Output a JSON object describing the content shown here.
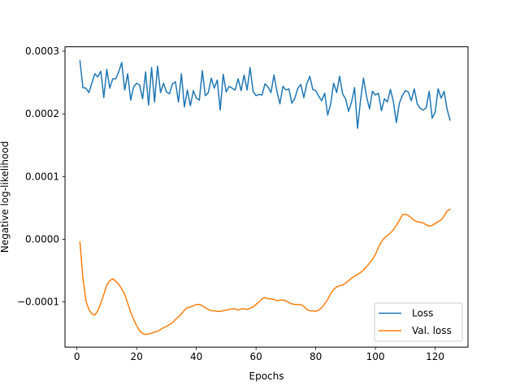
{
  "chart_data": {
    "type": "line",
    "xlabel": "Epochs",
    "ylabel": "Negative log-likelihood",
    "xlim": [
      -4,
      131
    ],
    "ylim": [
      -0.000172,
      0.000307
    ],
    "xticks": [
      0,
      20,
      40,
      60,
      80,
      100,
      120
    ],
    "xtick_labels": [
      "0",
      "20",
      "40",
      "60",
      "80",
      "100",
      "120"
    ],
    "yticks": [
      -0.0001,
      0.0,
      0.0001,
      0.0002,
      0.0003
    ],
    "ytick_labels": [
      "−0.0001",
      "0.0000",
      "0.0001",
      "0.0002",
      "0.0003"
    ],
    "grid": false,
    "legend_position": "lower-right",
    "series": [
      {
        "name": "Loss",
        "color": "#1f77b4",
        "x": [
          1,
          2,
          3,
          4,
          5,
          6,
          7,
          8,
          9,
          10,
          11,
          12,
          13,
          14,
          15,
          16,
          17,
          18,
          19,
          20,
          21,
          22,
          23,
          24,
          25,
          26,
          27,
          28,
          29,
          30,
          31,
          32,
          33,
          34,
          35,
          36,
          37,
          38,
          39,
          40,
          41,
          42,
          43,
          44,
          45,
          46,
          47,
          48,
          49,
          50,
          51,
          52,
          53,
          54,
          55,
          56,
          57,
          58,
          59,
          60,
          61,
          62,
          63,
          64,
          65,
          66,
          67,
          68,
          69,
          70,
          71,
          72,
          73,
          74,
          75,
          76,
          77,
          78,
          79,
          80,
          81,
          82,
          83,
          84,
          85,
          86,
          87,
          88,
          89,
          90,
          91,
          92,
          93,
          94,
          95,
          96,
          97,
          98,
          99,
          100,
          101,
          102,
          103,
          104,
          105,
          106,
          107,
          108,
          109,
          110,
          111,
          112,
          113,
          114,
          115,
          116,
          117,
          118,
          119,
          120,
          121,
          122,
          123,
          124,
          125
        ],
        "y": [
          0.000285,
          0.000242,
          0.000241,
          0.000234,
          0.000249,
          0.000264,
          0.000259,
          0.000268,
          0.000226,
          0.000271,
          0.000241,
          0.000256,
          0.000256,
          0.000267,
          0.000282,
          0.000238,
          0.000264,
          0.000222,
          0.000243,
          0.000249,
          0.000246,
          0.000224,
          0.000267,
          0.000214,
          0.000274,
          0.000219,
          0.000276,
          0.000234,
          0.000249,
          0.000235,
          0.000232,
          0.000248,
          0.000251,
          0.000219,
          0.000264,
          0.000211,
          0.000238,
          0.000213,
          0.000237,
          0.000225,
          0.000222,
          0.000269,
          0.000229,
          0.000234,
          0.000257,
          0.000241,
          0.000254,
          0.000206,
          0.000263,
          0.000235,
          0.000244,
          0.000241,
          0.000238,
          0.000256,
          0.000237,
          0.000262,
          0.000238,
          0.000274,
          0.000236,
          0.000229,
          0.000231,
          0.00023,
          0.000248,
          0.000243,
          0.000234,
          0.000262,
          0.000236,
          0.000216,
          0.000244,
          0.000238,
          0.00024,
          0.000217,
          0.000225,
          0.000241,
          0.000247,
          0.000226,
          0.000248,
          0.00026,
          0.000239,
          0.000237,
          0.000228,
          0.000221,
          0.000233,
          0.000198,
          0.000216,
          0.000249,
          0.000234,
          0.00026,
          0.000232,
          0.000224,
          0.000204,
          0.000219,
          0.000242,
          0.000177,
          0.000222,
          0.000257,
          0.000228,
          0.000208,
          0.000236,
          0.00023,
          0.000233,
          0.000205,
          0.000224,
          0.000219,
          0.000239,
          0.00022,
          0.000186,
          0.000217,
          0.000229,
          0.000237,
          0.000235,
          0.000221,
          0.00024,
          0.000216,
          0.000209,
          0.000206,
          0.00021,
          0.000236,
          0.000193,
          0.000203,
          0.00024,
          0.000225,
          0.000236,
          0.000207,
          0.00019
        ]
      },
      {
        "name": "Val. loss",
        "color": "#ff7f0e",
        "x": [
          1,
          2,
          3,
          4,
          5,
          6,
          7,
          8,
          9,
          10,
          11,
          12,
          13,
          14,
          15,
          16,
          17,
          18,
          19,
          20,
          21,
          22,
          23,
          24,
          25,
          26,
          27,
          28,
          29,
          30,
          31,
          32,
          33,
          34,
          35,
          36,
          37,
          38,
          39,
          40,
          41,
          42,
          43,
          44,
          45,
          46,
          47,
          48,
          49,
          50,
          51,
          52,
          53,
          54,
          55,
          56,
          57,
          58,
          59,
          60,
          61,
          62,
          63,
          64,
          65,
          66,
          67,
          68,
          69,
          70,
          71,
          72,
          73,
          74,
          75,
          76,
          77,
          78,
          79,
          80,
          81,
          82,
          83,
          84,
          85,
          86,
          87,
          88,
          89,
          90,
          91,
          92,
          93,
          94,
          95,
          96,
          97,
          98,
          99,
          100,
          101,
          102,
          103,
          104,
          105,
          106,
          107,
          108,
          109,
          110,
          111,
          112,
          113,
          114,
          115,
          116,
          117,
          118,
          119,
          120,
          121,
          122,
          123,
          124,
          125
        ],
        "y": [
          -4e-06,
          -6.2e-05,
          -9.8e-05,
          -0.000112,
          -0.000119,
          -0.000121,
          -0.000114,
          -0.000102,
          -8.8e-05,
          -7.3e-05,
          -6.6e-05,
          -6.3e-05,
          -6.7e-05,
          -7.2e-05,
          -7.9e-05,
          -8.8e-05,
          -0.000102,
          -0.000116,
          -0.000128,
          -0.000138,
          -0.000146,
          -0.00015,
          -0.000152,
          -0.000151,
          -0.00015,
          -0.000148,
          -0.000147,
          -0.000144,
          -0.000141,
          -0.000139,
          -0.000136,
          -0.000133,
          -0.000128,
          -0.000124,
          -0.000119,
          -0.000113,
          -0.000109,
          -0.000108,
          -0.000106,
          -0.000104,
          -0.000104,
          -0.000106,
          -0.000109,
          -0.000112,
          -0.000114,
          -0.000114,
          -0.000115,
          -0.000115,
          -0.000114,
          -0.000113,
          -0.000112,
          -0.000111,
          -0.000111,
          -0.000113,
          -0.000111,
          -0.000111,
          -0.000112,
          -0.00011,
          -0.000108,
          -0.000104,
          -0.0001,
          -9.5e-05,
          -9.3e-05,
          -9.5e-05,
          -9.5e-05,
          -9.6e-05,
          -9.8e-05,
          -9.7e-05,
          -9.7e-05,
          -9.8e-05,
          -0.000101,
          -0.000103,
          -0.000104,
          -0.000104,
          -0.000104,
          -0.000107,
          -0.000112,
          -0.000114,
          -0.000114,
          -0.000115,
          -0.000113,
          -0.000109,
          -0.000103,
          -9.6e-05,
          -8.7e-05,
          -8e-05,
          -7.6e-05,
          -7.4e-05,
          -7.3e-05,
          -7e-05,
          -6.6e-05,
          -6.2e-05,
          -5.9e-05,
          -5.6e-05,
          -5.3e-05,
          -4.9e-05,
          -4.4e-05,
          -3.8e-05,
          -3.2e-05,
          -2.4e-05,
          -1.3e-05,
          -4e-06,
          2e-06,
          6e-06,
          1e-05,
          1.5e-05,
          2.2e-05,
          3e-05,
          3.9e-05,
          4e-05,
          3.8e-05,
          3.4e-05,
          3e-05,
          2.8e-05,
          2.7e-05,
          2.6e-05,
          2.3e-05,
          2.1e-05,
          2.2e-05,
          2.5e-05,
          2.8e-05,
          3.1e-05,
          3.7e-05,
          4.5e-05,
          4.8e-05
        ]
      }
    ]
  }
}
